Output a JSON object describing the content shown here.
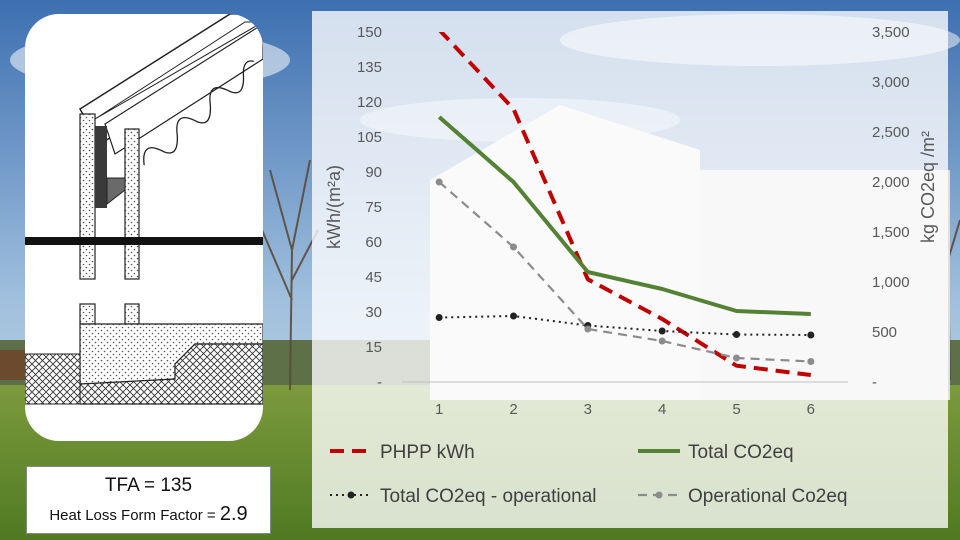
{
  "tfa_label": "TFA = 135",
  "hlff_label": "Heat Loss Form Factor = ",
  "hlff_value": "2.9",
  "chart_data": {
    "type": "line",
    "title": "",
    "x": [
      1,
      2,
      3,
      4,
      5,
      6
    ],
    "ylabel_left": "kWh/(m²a)",
    "ylabel_right": "kg CO2eq /m²",
    "ylim_left": [
      0,
      150
    ],
    "yticks_left": [
      "-",
      "15",
      "30",
      "45",
      "60",
      "75",
      "90",
      "105",
      "120",
      "135",
      "150"
    ],
    "ylim_right": [
      0,
      3500
    ],
    "yticks_right": [
      "-",
      "500",
      "1,000",
      "1,500",
      "2,000",
      "2,500",
      "3,000",
      "3,500"
    ],
    "legend_position": "bottom",
    "grid": false,
    "series": [
      {
        "name": "PHPP kWh",
        "axis": "left",
        "color": "#c00000",
        "style": "dashed",
        "values": [
          151,
          117,
          44,
          27,
          7,
          3
        ]
      },
      {
        "name": "Total CO2eq",
        "axis": "right",
        "color": "#548235",
        "style": "solid",
        "values": [
          2650,
          2000,
          1100,
          930,
          710,
          680
        ]
      },
      {
        "name": "Total CO2eq - operational",
        "axis": "right",
        "color": "#222222",
        "style": "dotted",
        "values": [
          645,
          660,
          565,
          510,
          475,
          470
        ]
      },
      {
        "name": "Operational Co2eq",
        "axis": "right",
        "color": "#8c8c8c",
        "style": "dashed",
        "values": [
          2000,
          1350,
          530,
          410,
          240,
          205
        ]
      }
    ]
  }
}
